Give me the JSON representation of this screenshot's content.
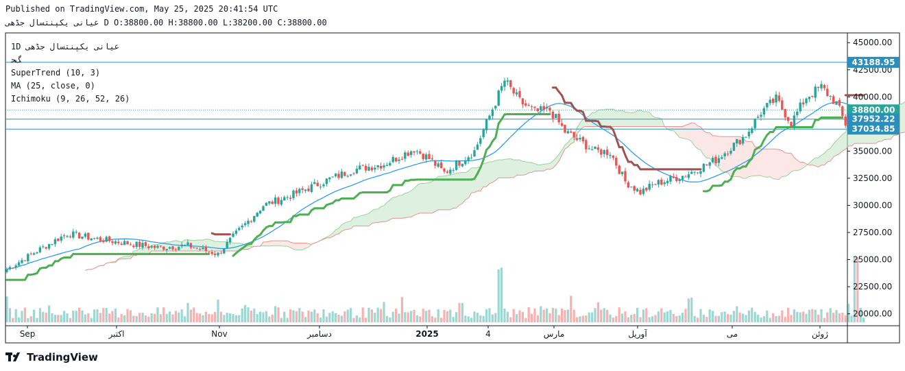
{
  "header": {
    "published": "Published on TradingView.com, May 25, 2025 20:41:54 UTC",
    "symbol": "عیانی یکپنتسال جڈهی",
    "ohlc": "D O:38800.00 H:38800.00 L:38200.00 C:38800.00"
  },
  "legend": {
    "title": "1D عیانی یکپنتسال جڈهی",
    "subtitle": "ﮓﺤ",
    "indicators": [
      "SuperTrend (10, 3)",
      "MA (25, close, 0)",
      "Ichimoku (9, 26, 52, 26)"
    ]
  },
  "brand": {
    "name": "TradingView"
  },
  "colors": {
    "up": "#26a69a",
    "down": "#ef5350",
    "supertrend_up": "#4caf50",
    "supertrend_down": "#a05252",
    "ma": "#2196f3",
    "cloud_bull": "#c8e6c9",
    "cloud_bear": "#f8d7d6",
    "hline": "#2a8fbd"
  },
  "chart_data": {
    "type": "candlestick",
    "title": "",
    "xlabel": "",
    "ylabel": "",
    "ylim": [
      18900,
      45900
    ],
    "y_ticks": [
      "45000.00",
      "42500.00",
      "40000.00",
      "37500.00",
      "35000.00",
      "32500.00",
      "30000.00",
      "27500.00",
      "25000.00",
      "22500.00",
      "20000.00"
    ],
    "x_ticks": [
      "Sep",
      "اکتبر",
      "Nov",
      "دسامبر",
      "2025",
      "4",
      "مارس",
      "آوریل",
      "می",
      "ژوئن"
    ],
    "price_labels": [
      {
        "value": 43188.95,
        "text": "43188.95",
        "color": "#2a8fbd"
      },
      {
        "value": 38800.0,
        "text": "38800.00",
        "color": "#26a69a"
      },
      {
        "value": 37952.22,
        "text": "37952.22",
        "color": "#2a8fbd"
      },
      {
        "value": 37034.85,
        "text": "37034.85",
        "color": "#2a8fbd"
      }
    ],
    "horizontal_lines": [
      43188.95,
      37952.22,
      37034.85
    ],
    "key_points": {
      "close": [
        [
          0,
          24100
        ],
        [
          10,
          25800
        ],
        [
          20,
          27400
        ],
        [
          30,
          26900
        ],
        [
          40,
          26500
        ],
        [
          50,
          26100
        ],
        [
          60,
          26300
        ],
        [
          70,
          25500
        ],
        [
          75,
          27100
        ],
        [
          85,
          30000
        ],
        [
          95,
          31000
        ],
        [
          105,
          32200
        ],
        [
          115,
          33300
        ],
        [
          125,
          33800
        ],
        [
          135,
          35200
        ],
        [
          140,
          34300
        ],
        [
          145,
          33000
        ],
        [
          155,
          35000
        ],
        [
          165,
          41500
        ],
        [
          170,
          39600
        ],
        [
          175,
          38600
        ],
        [
          180,
          38800
        ],
        [
          185,
          36800
        ],
        [
          195,
          35000
        ],
        [
          200,
          34900
        ],
        [
          205,
          32200
        ],
        [
          210,
          31200
        ],
        [
          215,
          32000
        ],
        [
          225,
          32800
        ],
        [
          235,
          34200
        ],
        [
          245,
          36500
        ],
        [
          250,
          38600
        ],
        [
          255,
          39800
        ],
        [
          260,
          37600
        ],
        [
          265,
          40000
        ],
        [
          270,
          40900
        ],
        [
          275,
          39400
        ],
        [
          278,
          37500
        ],
        [
          281,
          37900
        ],
        [
          284,
          38800
        ]
      ]
    }
  }
}
